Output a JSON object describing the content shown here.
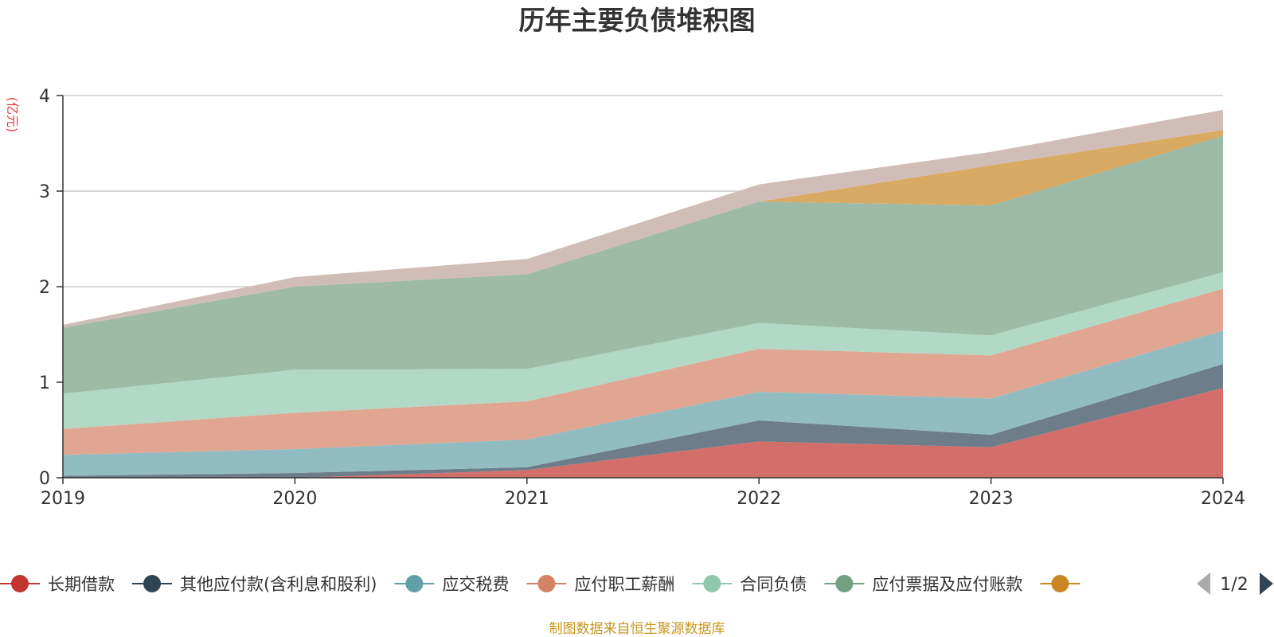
{
  "title": "历年主要负债堆积图",
  "unit_label": "(亿元)",
  "footer": "制图数据来自恒生聚源数据库",
  "legend_pager": "1/2",
  "chart_data": {
    "type": "area",
    "stacked": true,
    "title": "历年主要负债堆积图",
    "ylabel": "(亿元)",
    "ylim": [
      0,
      4
    ],
    "yticks": [
      0,
      1,
      2,
      3,
      4
    ],
    "grid": true,
    "legend_placement": "bottom",
    "categories": [
      "2019",
      "2020",
      "2021",
      "2022",
      "2023",
      "2024"
    ],
    "series": [
      {
        "name": "长期借款",
        "color": "#c23531",
        "fill": "#d46e6b",
        "values": [
          0.0,
          0.0,
          0.08,
          0.38,
          0.32,
          0.94
        ]
      },
      {
        "name": "其他应付款(含利息和股利)",
        "color": "#2f4554",
        "fill": "#6d7d89",
        "values": [
          0.02,
          0.05,
          0.03,
          0.22,
          0.13,
          0.25
        ]
      },
      {
        "name": "应交税费",
        "color": "#61a0a8",
        "fill": "#91bdc2",
        "values": [
          0.22,
          0.25,
          0.29,
          0.3,
          0.38,
          0.35
        ]
      },
      {
        "name": "应付职工薪酬",
        "color": "#d48265",
        "fill": "#e1a691",
        "values": [
          0.27,
          0.38,
          0.4,
          0.45,
          0.45,
          0.44
        ]
      },
      {
        "name": "合同负债",
        "color": "#91c7ae",
        "fill": "#b2d8c6",
        "values": [
          0.37,
          0.45,
          0.34,
          0.27,
          0.21,
          0.17
        ]
      },
      {
        "name": "应付票据及应付账款",
        "color": "#749f83",
        "fill": "#9ebba8",
        "values": [
          0.69,
          0.87,
          0.99,
          1.27,
          1.36,
          1.43
        ]
      },
      {
        "name": "",
        "color": "#ca8622",
        "fill": "#d9aa64",
        "values": [
          0.0,
          0.0,
          0.0,
          0.0,
          0.42,
          0.06
        ]
      },
      {
        "name": "",
        "color": "#bda29a",
        "fill": "#d1bdb7",
        "values": [
          0.03,
          0.1,
          0.16,
          0.18,
          0.14,
          0.21
        ]
      }
    ]
  }
}
